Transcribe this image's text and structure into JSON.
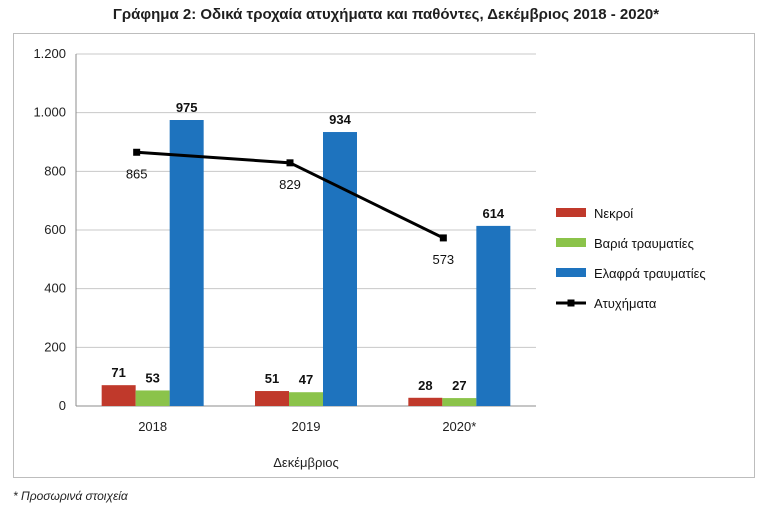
{
  "chart_data": {
    "type": "bar",
    "title": "Γράφημα 2: Οδικά τροχαία ατυχήματα και παθόντες, Δεκέμβριος 2018 - 2020*",
    "xlabel": "Δεκέμβριος",
    "ylabel": "",
    "categories": [
      "2018",
      "2019",
      "2020*"
    ],
    "ylim": [
      0,
      1200
    ],
    "yticks": [
      0,
      200,
      400,
      600,
      800,
      1000,
      1200
    ],
    "ytick_labels": [
      "0",
      "200",
      "400",
      "600",
      "800",
      "1.000",
      "1.200"
    ],
    "grid": true,
    "legend_position": "right",
    "series": [
      {
        "name": "Νεκροί",
        "kind": "bar",
        "color": "#c0392b",
        "values": [
          71,
          51,
          28
        ]
      },
      {
        "name": "Βαριά τραυματίες",
        "kind": "bar",
        "color": "#8bc34a",
        "values": [
          53,
          47,
          27
        ]
      },
      {
        "name": "Ελαφρά τραυματίες",
        "kind": "bar",
        "color": "#1e73be",
        "values": [
          975,
          934,
          614
        ]
      },
      {
        "name": "Ατυχήματα",
        "kind": "line",
        "color": "#000000",
        "values": [
          865,
          829,
          573
        ]
      }
    ]
  },
  "footnote": "* Προσωρινά στοιχεία"
}
